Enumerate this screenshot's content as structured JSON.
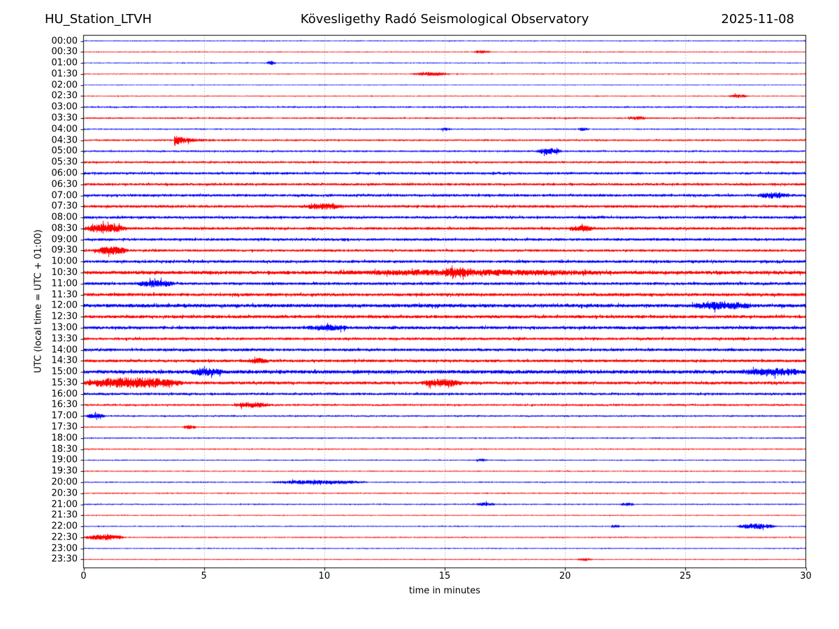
{
  "header": {
    "station": "HU_Station_LTVH",
    "observatory": "Kövesligethy Radó Seismological Observatory",
    "date": "2025-11-08"
  },
  "chart_data": {
    "type": "line",
    "variant": "helicorder-dayplot",
    "title_left": "HU_Station_LTVH",
    "title_center": "Kövesligethy Radó Seismological Observatory",
    "title_right": "2025-11-08",
    "xlabel": "time in minutes",
    "ylabel": "UTC (local time = UTC + 01:00)",
    "xlim": [
      0,
      30
    ],
    "x_ticks": [
      0,
      5,
      10,
      15,
      20,
      25,
      30
    ],
    "minutes_per_row": 30,
    "grid": "dotted vertical lines at 5-minute intervals",
    "legend": "none",
    "colors": {
      "hour_rows": "#0000ff",
      "half_hour_rows": "#ff0000",
      "grid": "#888888",
      "frame": "#000000"
    },
    "rows": [
      {
        "label": "00:00",
        "color": "#0000ff",
        "noise": 0.12,
        "events": []
      },
      {
        "label": "00:30",
        "color": "#ff0000",
        "noise": 0.12,
        "events": [
          [
            16.2,
            16.9,
            0.3
          ]
        ]
      },
      {
        "label": "01:00",
        "color": "#0000ff",
        "noise": 0.12,
        "events": [
          [
            7.6,
            8.0,
            0.35
          ]
        ]
      },
      {
        "label": "01:30",
        "color": "#ff0000",
        "noise": 0.12,
        "events": [
          [
            13.6,
            15.2,
            0.35
          ]
        ]
      },
      {
        "label": "02:00",
        "color": "#0000ff",
        "noise": 0.1,
        "events": []
      },
      {
        "label": "02:30",
        "color": "#ff0000",
        "noise": 0.12,
        "events": [
          [
            26.8,
            27.6,
            0.35
          ]
        ]
      },
      {
        "label": "03:00",
        "color": "#0000ff",
        "noise": 0.18,
        "events": []
      },
      {
        "label": "03:30",
        "color": "#ff0000",
        "noise": 0.18,
        "events": [
          [
            22.6,
            23.4,
            0.3
          ]
        ]
      },
      {
        "label": "04:00",
        "color": "#0000ff",
        "noise": 0.15,
        "events": [
          [
            14.8,
            15.3,
            0.25
          ],
          [
            20.5,
            21.0,
            0.25
          ]
        ]
      },
      {
        "label": "04:30",
        "color": "#ff0000",
        "noise": 0.2,
        "events": [
          [
            3.75,
            6.2,
            1.3,
            "spike"
          ]
        ]
      },
      {
        "label": "05:00",
        "color": "#0000ff",
        "noise": 0.2,
        "events": [
          [
            18.8,
            19.9,
            0.55
          ]
        ]
      },
      {
        "label": "05:30",
        "color": "#ff0000",
        "noise": 0.24,
        "events": []
      },
      {
        "label": "06:00",
        "color": "#0000ff",
        "noise": 0.28,
        "events": []
      },
      {
        "label": "06:30",
        "color": "#ff0000",
        "noise": 0.28,
        "events": []
      },
      {
        "label": "07:00",
        "color": "#0000ff",
        "noise": 0.3,
        "events": [
          [
            28.0,
            29.4,
            0.45
          ]
        ]
      },
      {
        "label": "07:30",
        "color": "#ff0000",
        "noise": 0.3,
        "events": [
          [
            9.2,
            10.8,
            0.5
          ]
        ]
      },
      {
        "label": "08:00",
        "color": "#0000ff",
        "noise": 0.3,
        "events": []
      },
      {
        "label": "08:30",
        "color": "#ff0000",
        "noise": 0.3,
        "events": [
          [
            0.0,
            1.8,
            0.8
          ],
          [
            20.2,
            21.2,
            0.5
          ]
        ]
      },
      {
        "label": "09:00",
        "color": "#0000ff",
        "noise": 0.3,
        "events": []
      },
      {
        "label": "09:30",
        "color": "#ff0000",
        "noise": 0.28,
        "events": [
          [
            0.4,
            1.9,
            0.7
          ]
        ]
      },
      {
        "label": "10:00",
        "color": "#0000ff",
        "noise": 0.32,
        "events": []
      },
      {
        "label": "10:30",
        "color": "#ff0000",
        "noise": 0.4,
        "events": [
          [
            10.5,
            22.0,
            0.35
          ],
          [
            14.8,
            16.2,
            0.5
          ]
        ]
      },
      {
        "label": "11:00",
        "color": "#0000ff",
        "noise": 0.32,
        "events": [
          [
            2.2,
            3.8,
            0.55
          ]
        ]
      },
      {
        "label": "11:30",
        "color": "#ff0000",
        "noise": 0.35,
        "events": []
      },
      {
        "label": "12:00",
        "color": "#0000ff",
        "noise": 0.4,
        "events": [
          [
            25.2,
            27.8,
            0.6
          ]
        ]
      },
      {
        "label": "12:30",
        "color": "#ff0000",
        "noise": 0.35,
        "events": []
      },
      {
        "label": "13:00",
        "color": "#0000ff",
        "noise": 0.35,
        "events": [
          [
            9.3,
            11.0,
            0.45
          ]
        ]
      },
      {
        "label": "13:30",
        "color": "#ff0000",
        "noise": 0.3,
        "events": []
      },
      {
        "label": "14:00",
        "color": "#0000ff",
        "noise": 0.32,
        "events": []
      },
      {
        "label": "14:30",
        "color": "#ff0000",
        "noise": 0.32,
        "events": [
          [
            6.7,
            7.7,
            0.4
          ]
        ]
      },
      {
        "label": "15:00",
        "color": "#0000ff",
        "noise": 0.42,
        "events": [
          [
            4.4,
            5.8,
            0.55
          ],
          [
            27.3,
            30.0,
            0.55
          ]
        ]
      },
      {
        "label": "15:30",
        "color": "#ff0000",
        "noise": 0.34,
        "events": [
          [
            0.0,
            4.2,
            1.0
          ],
          [
            14.0,
            15.8,
            0.65
          ]
        ]
      },
      {
        "label": "16:00",
        "color": "#0000ff",
        "noise": 0.28,
        "events": []
      },
      {
        "label": "16:30",
        "color": "#ff0000",
        "noise": 0.22,
        "events": [
          [
            6.2,
            7.8,
            0.5
          ]
        ]
      },
      {
        "label": "17:00",
        "color": "#0000ff",
        "noise": 0.18,
        "events": [
          [
            0.1,
            0.9,
            0.45
          ]
        ]
      },
      {
        "label": "17:30",
        "color": "#ff0000",
        "noise": 0.15,
        "events": [
          [
            4.1,
            4.7,
            0.35
          ]
        ]
      },
      {
        "label": "18:00",
        "color": "#0000ff",
        "noise": 0.15,
        "events": []
      },
      {
        "label": "18:30",
        "color": "#ff0000",
        "noise": 0.14,
        "events": []
      },
      {
        "label": "19:00",
        "color": "#0000ff",
        "noise": 0.13,
        "events": [
          [
            16.3,
            16.8,
            0.25
          ]
        ]
      },
      {
        "label": "19:30",
        "color": "#ff0000",
        "noise": 0.13,
        "events": []
      },
      {
        "label": "20:00",
        "color": "#0000ff",
        "noise": 0.14,
        "events": [
          [
            7.8,
            11.8,
            0.4
          ]
        ]
      },
      {
        "label": "20:30",
        "color": "#ff0000",
        "noise": 0.14,
        "events": []
      },
      {
        "label": "21:00",
        "color": "#0000ff",
        "noise": 0.14,
        "events": [
          [
            16.3,
            17.1,
            0.35
          ],
          [
            22.3,
            22.9,
            0.3
          ]
        ]
      },
      {
        "label": "21:30",
        "color": "#ff0000",
        "noise": 0.12,
        "events": []
      },
      {
        "label": "22:00",
        "color": "#0000ff",
        "noise": 0.13,
        "events": [
          [
            21.9,
            22.3,
            0.3
          ],
          [
            27.1,
            28.8,
            0.55
          ]
        ]
      },
      {
        "label": "22:30",
        "color": "#ff0000",
        "noise": 0.14,
        "events": [
          [
            0.0,
            1.7,
            0.55
          ]
        ]
      },
      {
        "label": "23:00",
        "color": "#0000ff",
        "noise": 0.12,
        "events": []
      },
      {
        "label": "23:30",
        "color": "#ff0000",
        "noise": 0.12,
        "events": [
          [
            20.5,
            21.2,
            0.25
          ]
        ]
      }
    ]
  }
}
